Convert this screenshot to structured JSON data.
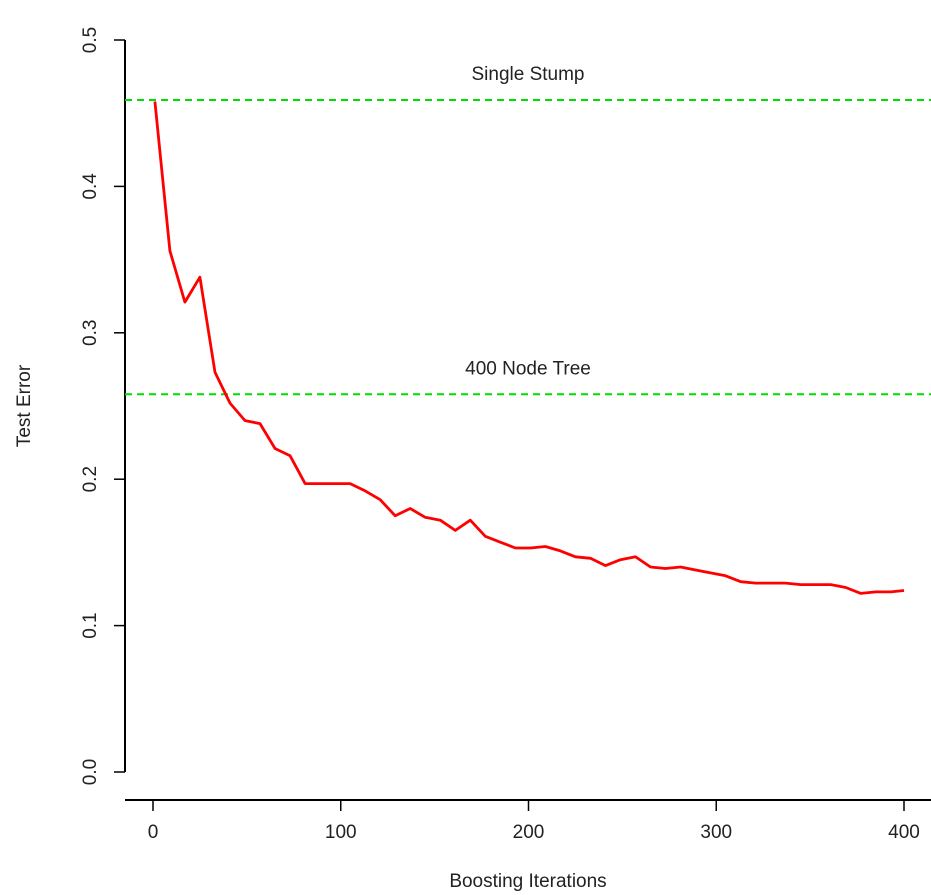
{
  "chart_data": {
    "type": "line",
    "title": "",
    "xlabel": "Boosting Iterations",
    "ylabel": "Test Error",
    "xlim": [
      -15,
      415
    ],
    "ylim": [
      -0.02,
      0.52
    ],
    "xticks": [
      0,
      100,
      200,
      300,
      400
    ],
    "yticks": [
      0.0,
      0.1,
      0.2,
      0.3,
      0.4,
      0.5
    ],
    "xtick_labels": [
      "0",
      "100",
      "200",
      "300",
      "400"
    ],
    "ytick_labels": [
      "0.0",
      "0.1",
      "0.2",
      "0.3",
      "0.4",
      "0.5"
    ],
    "grid": false,
    "series": [
      {
        "color": "#ff0000",
        "x": [
          1,
          9,
          17,
          25,
          33,
          41,
          49,
          57,
          65,
          73,
          81,
          89,
          97,
          105,
          113,
          121,
          129,
          137,
          145,
          153,
          161,
          169,
          177,
          185,
          193,
          201,
          209,
          217,
          225,
          233,
          241,
          249,
          257,
          265,
          273,
          281,
          289,
          297,
          305,
          313,
          321,
          329,
          337,
          345,
          353,
          361,
          369,
          377,
          385,
          393,
          400
        ],
        "y": [
          0.458,
          0.356,
          0.321,
          0.338,
          0.273,
          0.252,
          0.24,
          0.238,
          0.221,
          0.216,
          0.197,
          0.197,
          0.197,
          0.197,
          0.192,
          0.186,
          0.175,
          0.18,
          0.174,
          0.172,
          0.165,
          0.172,
          0.161,
          0.157,
          0.153,
          0.153,
          0.154,
          0.151,
          0.147,
          0.146,
          0.141,
          0.145,
          0.147,
          0.14,
          0.139,
          0.14,
          0.138,
          0.136,
          0.134,
          0.13,
          0.129,
          0.129,
          0.129,
          0.128,
          0.128,
          0.128,
          0.126,
          0.122,
          0.123,
          0.123,
          0.124
        ]
      }
    ],
    "reference_lines": [
      {
        "label": "Single Stump",
        "y": 0.459,
        "color": "#00dd00"
      },
      {
        "label": "400 Node Tree",
        "y": 0.258,
        "color": "#00dd00"
      }
    ]
  }
}
